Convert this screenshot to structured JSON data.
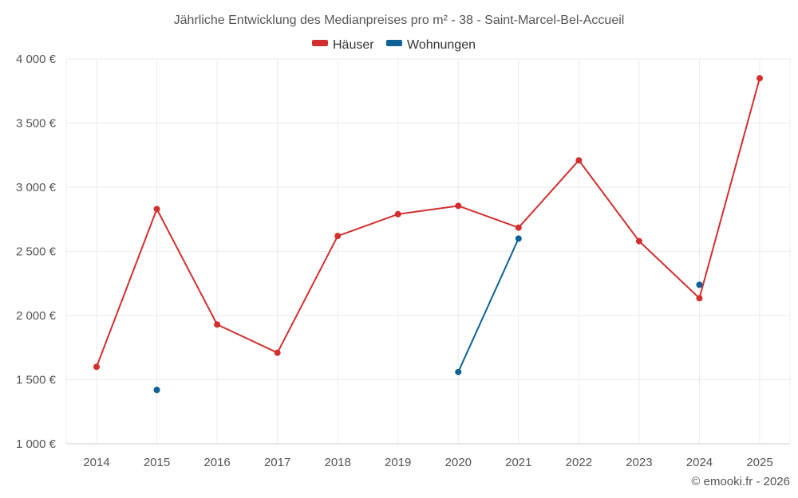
{
  "chart_data": {
    "type": "line",
    "title": "Jährliche Entwicklung des Medianpreises pro m² - 38 - Saint-Marcel-Bel-Accueil",
    "categories": [
      "2014",
      "2015",
      "2016",
      "2017",
      "2018",
      "2019",
      "2020",
      "2021",
      "2022",
      "2023",
      "2024",
      "2025"
    ],
    "ylim": [
      1000,
      4000
    ],
    "yticks": [
      1000,
      1500,
      2000,
      2500,
      3000,
      3500,
      4000
    ],
    "ytick_labels": [
      "1 000 €",
      "1 500 €",
      "2 000 €",
      "2 500 €",
      "3 000 €",
      "3 500 €",
      "4 000 €"
    ],
    "xlabel": "",
    "ylabel": "",
    "grid": true,
    "legend_position": "top-center",
    "series": [
      {
        "name": "Häuser",
        "color": "#d32f2f",
        "values": [
          1600,
          2830,
          1930,
          1710,
          2620,
          2790,
          2855,
          2685,
          3210,
          2580,
          2135,
          3850
        ]
      },
      {
        "name": "Wohnungen",
        "color": "#0d6197",
        "values": [
          null,
          1420,
          null,
          null,
          null,
          null,
          1560,
          2600,
          null,
          null,
          2240,
          null
        ]
      }
    ]
  },
  "credit": "© emooki.fr - 2026"
}
